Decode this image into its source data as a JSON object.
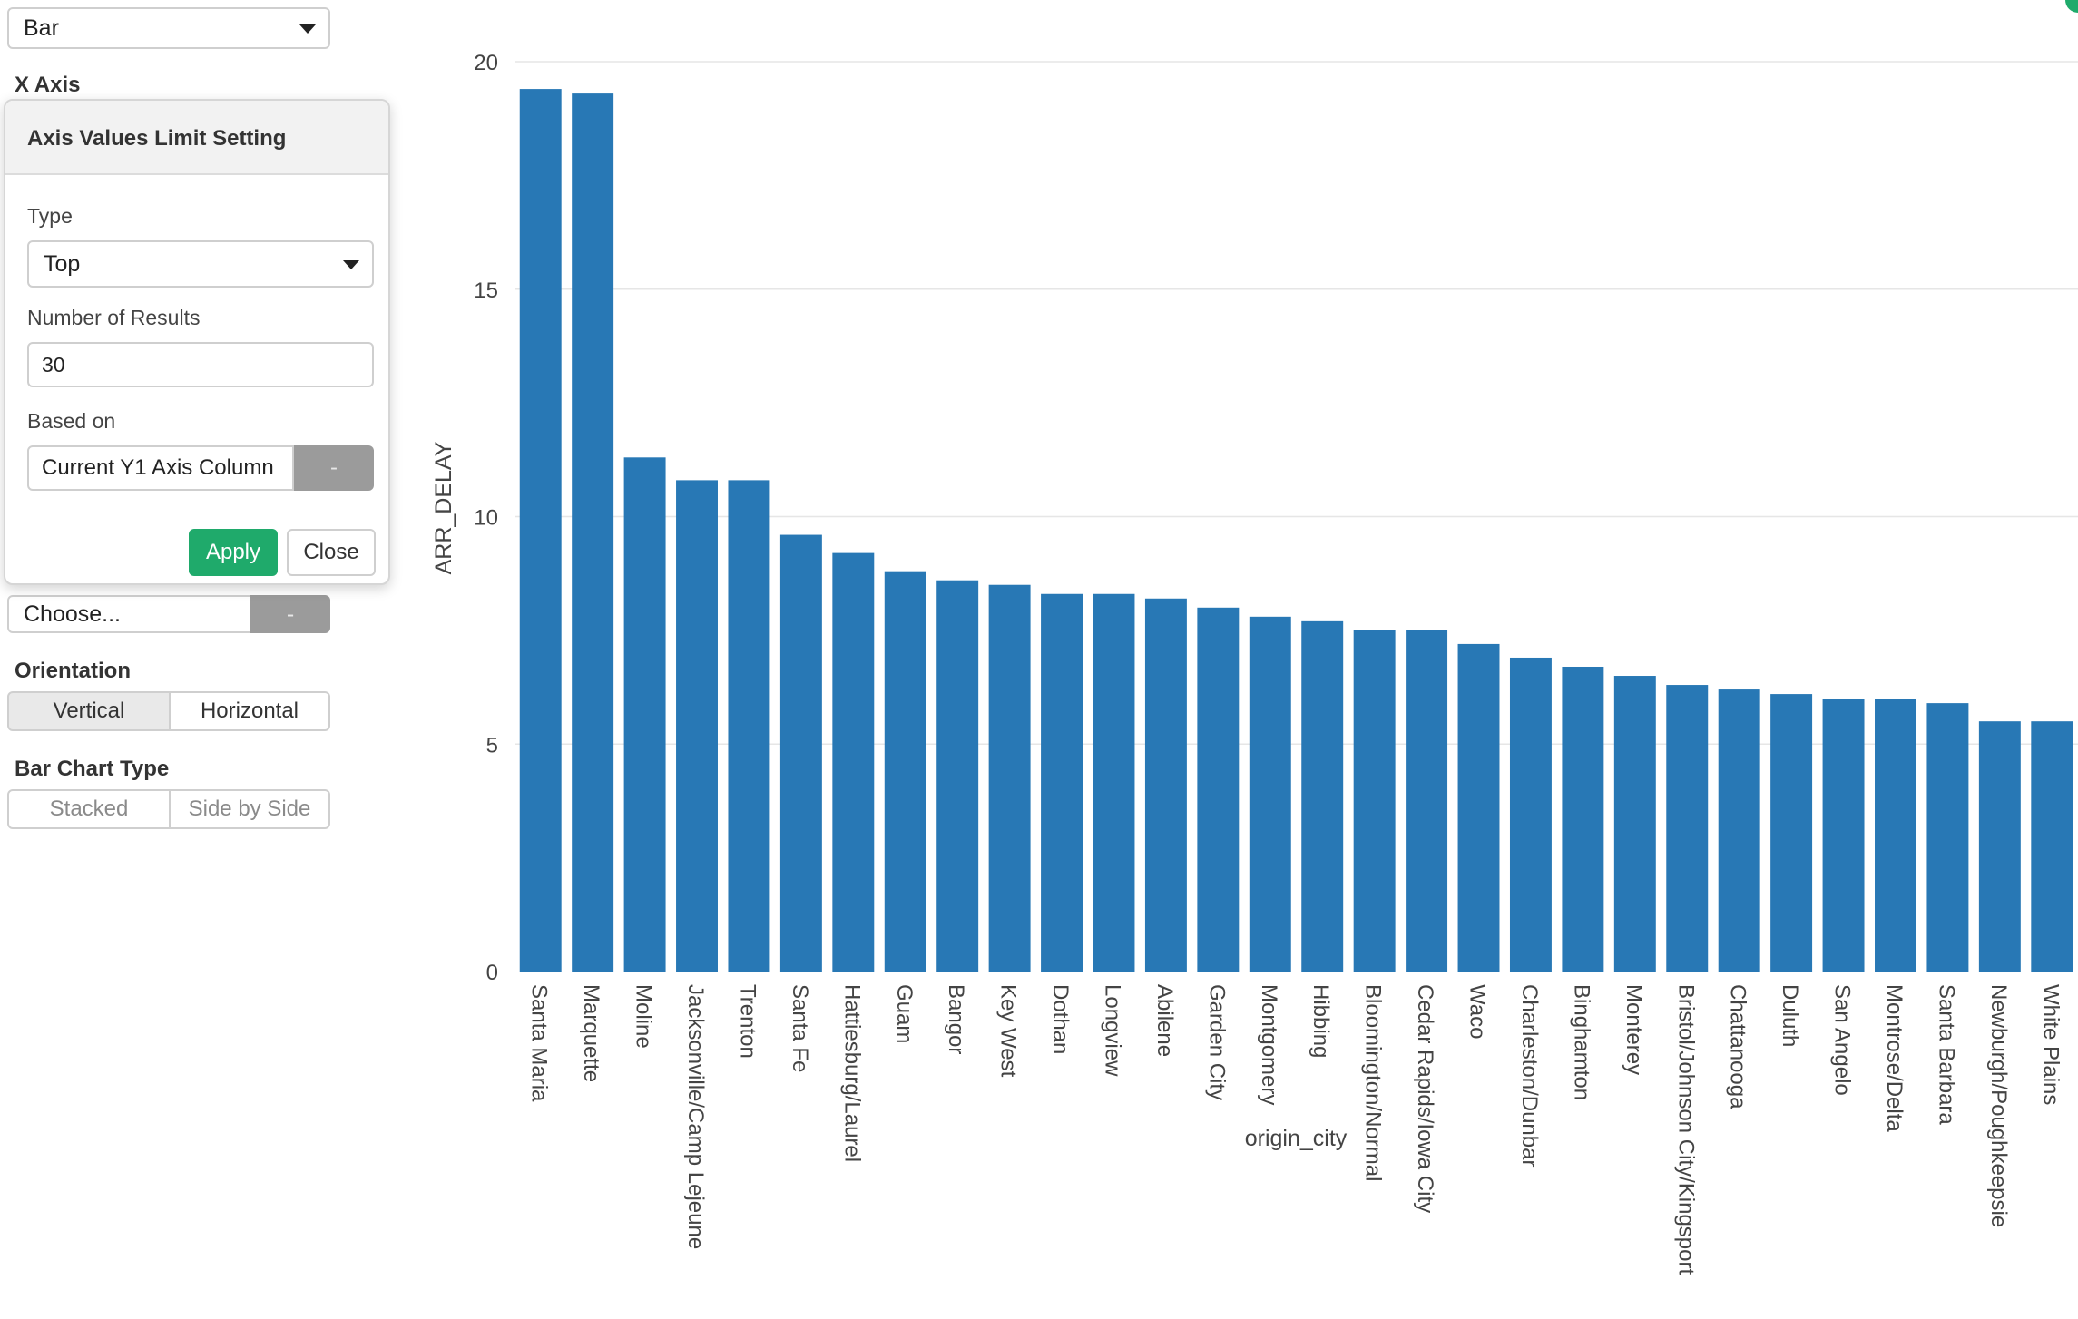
{
  "chart_type_select": {
    "value": "Bar"
  },
  "x_axis": {
    "label": "X Axis"
  },
  "popover": {
    "title": "Axis Values Limit Setting",
    "type_label": "Type",
    "type_value": "Top",
    "results_label": "Number of Results",
    "results_value": "30",
    "based_on_label": "Based on",
    "based_on_value": "Current Y1 Axis Column",
    "based_on_btn": "-",
    "apply": "Apply",
    "close": "Close"
  },
  "choose": {
    "value": "Choose...",
    "btn": "-"
  },
  "orientation": {
    "label": "Orientation",
    "options": [
      "Vertical",
      "Horizontal"
    ],
    "selected": "Vertical"
  },
  "bar_chart_type": {
    "label": "Bar Chart Type",
    "options": [
      "Stacked",
      "Side by Side"
    ]
  },
  "colors": {
    "bar": "#2878b5",
    "accent": "#1faa6b"
  },
  "chart_data": {
    "type": "bar",
    "xlabel": "origin_city",
    "ylabel": "ARR_DELAY",
    "ylim": [
      0,
      20
    ],
    "yticks": [
      0,
      5,
      10,
      15,
      20
    ],
    "grid": true,
    "categories": [
      "Santa Maria",
      "Marquette",
      "Moline",
      "Jacksonville/Camp Lejeune",
      "Trenton",
      "Santa Fe",
      "Hattiesburg/Laurel",
      "Guam",
      "Bangor",
      "Key West",
      "Dothan",
      "Longview",
      "Abilene",
      "Garden City",
      "Montgomery",
      "Hibbing",
      "Bloomington/Normal",
      "Cedar Rapids/Iowa City",
      "Waco",
      "Charleston/Dunbar",
      "Binghamton",
      "Monterey",
      "Bristol/Johnson City/Kingsport",
      "Chattanooga",
      "Duluth",
      "San Angelo",
      "Montrose/Delta",
      "Santa Barbara",
      "Newburgh/Poughkeepsie",
      "White Plains"
    ],
    "values": [
      19.4,
      19.3,
      11.3,
      10.8,
      10.8,
      9.6,
      9.2,
      8.8,
      8.6,
      8.5,
      8.3,
      8.3,
      8.2,
      8.0,
      7.8,
      7.7,
      7.5,
      7.5,
      7.2,
      6.9,
      6.7,
      6.5,
      6.3,
      6.2,
      6.1,
      6.0,
      6.0,
      5.9,
      5.5,
      5.5
    ]
  }
}
